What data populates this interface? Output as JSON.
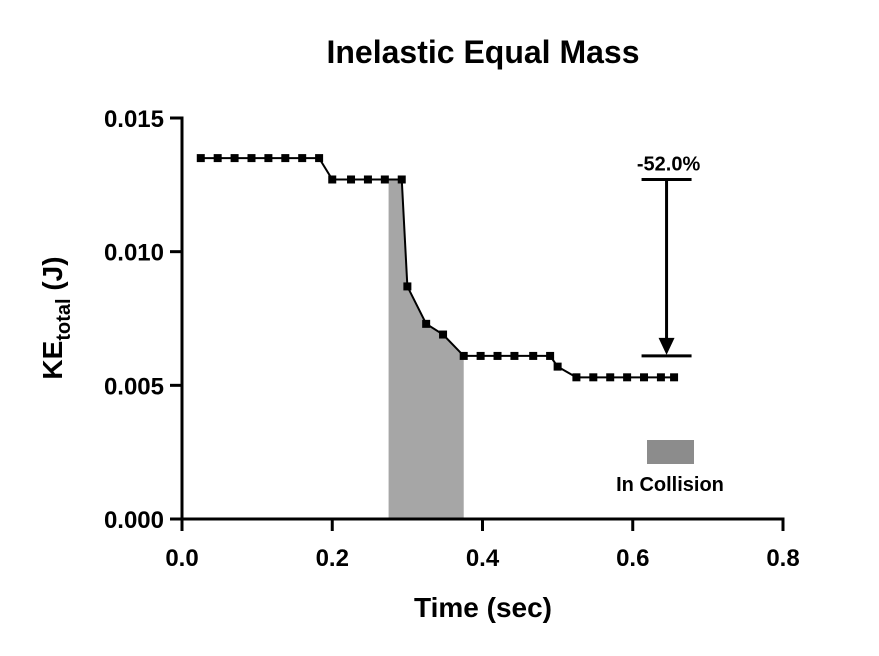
{
  "chart_data": {
    "type": "line",
    "title": "Inelastic Equal Mass",
    "xlabel": "Time (sec)",
    "ylabel_main": "KE",
    "ylabel_sub": "total",
    "ylabel_unit": " (J)",
    "xlim": [
      0.0,
      0.8
    ],
    "ylim": [
      0.0,
      0.015
    ],
    "xticks": [
      0.0,
      0.2,
      0.4,
      0.6,
      0.8
    ],
    "xtick_labels": [
      "0.0",
      "0.2",
      "0.4",
      "0.6",
      "0.8"
    ],
    "yticks": [
      0.0,
      0.005,
      0.01,
      0.015
    ],
    "ytick_labels": [
      "0.000",
      "0.005",
      "0.010",
      "0.015"
    ],
    "grid": false,
    "series": [
      {
        "name": "KE total",
        "x": [
          0.025,
          0.0475,
          0.07,
          0.0925,
          0.115,
          0.1375,
          0.16,
          0.1825,
          0.2,
          0.225,
          0.2475,
          0.27,
          0.2925,
          0.3,
          0.325,
          0.3475,
          0.375,
          0.3975,
          0.42,
          0.4425,
          0.4675,
          0.49,
          0.5,
          0.525,
          0.5475,
          0.57,
          0.5925,
          0.615,
          0.6375,
          0.655
        ],
        "values": [
          0.0135,
          0.0135,
          0.0135,
          0.0135,
          0.0135,
          0.0135,
          0.0135,
          0.0135,
          0.0127,
          0.0127,
          0.0127,
          0.0127,
          0.0127,
          0.0087,
          0.0073,
          0.0069,
          0.0061,
          0.0061,
          0.0061,
          0.0061,
          0.0061,
          0.0061,
          0.0057,
          0.0053,
          0.0053,
          0.0053,
          0.0053,
          0.0053,
          0.0053,
          0.0053
        ]
      }
    ],
    "collision_region": {
      "x_start": 0.275,
      "x_end": 0.375,
      "color": "#a6a6a6",
      "legend_color": "#8c8c8c",
      "legend_label": "In Collision",
      "legend_position": "bottom-right"
    },
    "change_annotation": {
      "label": "-52.0%",
      "x": 0.645,
      "y_from": 0.0127,
      "y_to": 0.0061
    }
  }
}
